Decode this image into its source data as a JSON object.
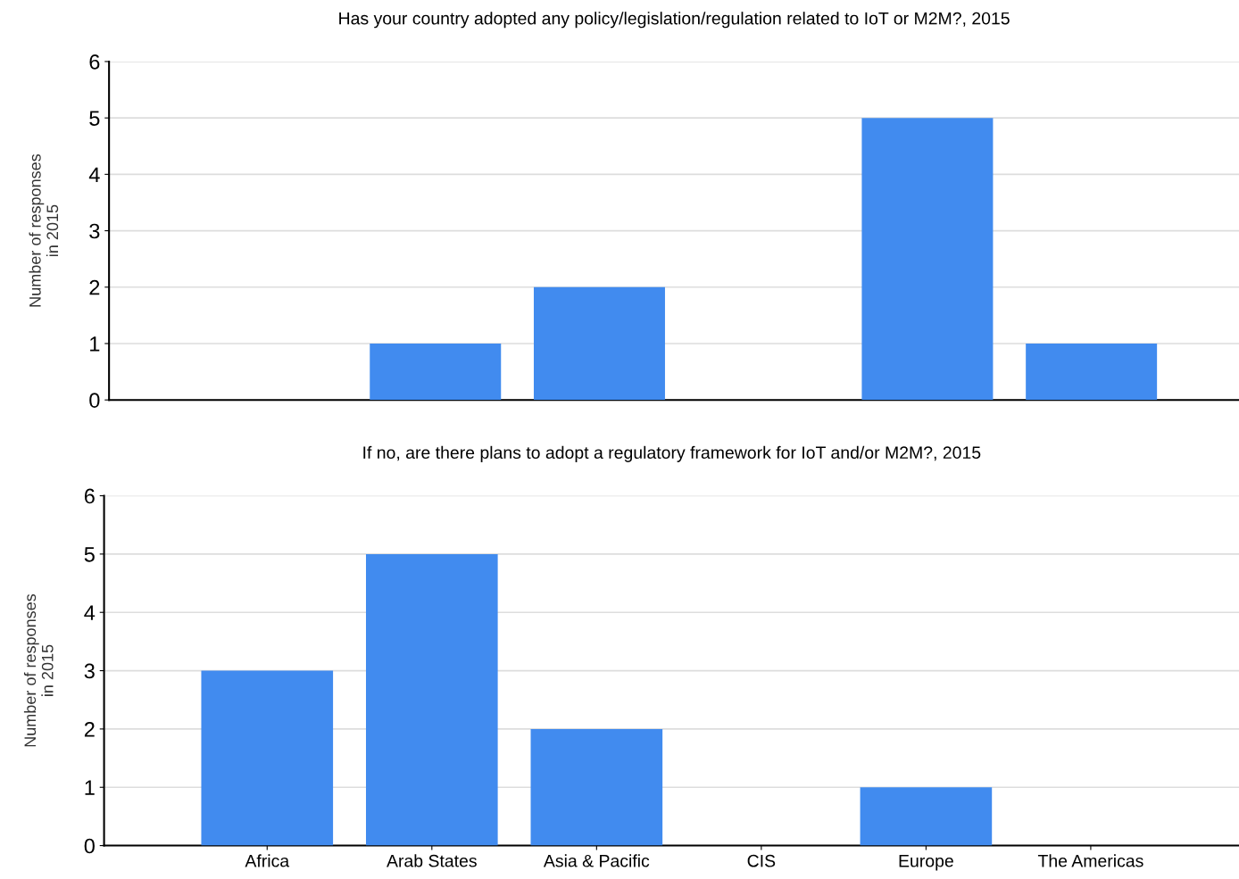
{
  "chart_data": [
    {
      "type": "bar",
      "title": "Has your country adopted any policy/legislation/regulation related to IoT or M2M?, 2015",
      "ylabel": "Number of responses\nin 2015",
      "categories": [
        null,
        null,
        null,
        null,
        null,
        null
      ],
      "values": [
        0,
        1,
        2,
        0,
        5,
        1
      ],
      "color": "#418bef",
      "ylim": [
        0,
        6
      ],
      "yticks": [
        0,
        1,
        2,
        3,
        4,
        5,
        6
      ],
      "grid": "y",
      "tick_labels": "y"
    },
    {
      "type": "bar",
      "title": "If no, are there plans to adopt a regulatory framework for IoT and/or M2M?, 2015",
      "ylabel": "Number of responses\nin 2015",
      "categories": [
        "Africa",
        "Arab States",
        "Asia & Pacific",
        "CIS",
        "Europe",
        "The Americas"
      ],
      "values": [
        3,
        5,
        2,
        0,
        1,
        0
      ],
      "color": "#418bef",
      "ylim": [
        0,
        6
      ],
      "yticks": [
        0,
        1,
        2,
        3,
        4,
        5,
        6
      ],
      "grid": "y"
    }
  ]
}
